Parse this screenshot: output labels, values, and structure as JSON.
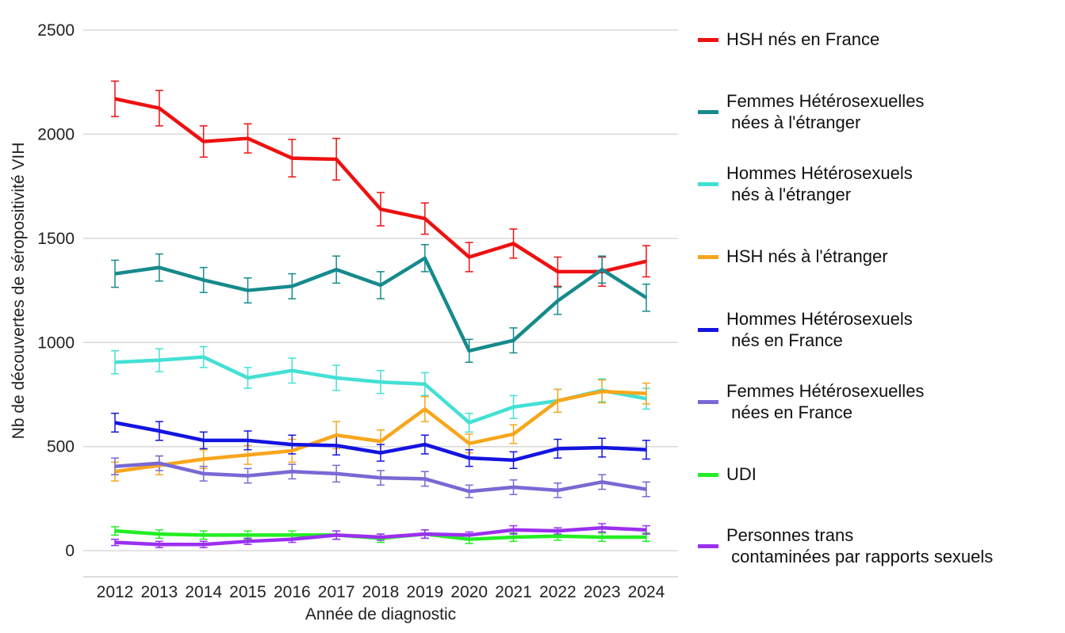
{
  "chart_data": {
    "type": "line",
    "ylabel": "Nb de découvertes de séropositivité VIH",
    "xlabel": "Année de diagnostic",
    "categories": [
      "2012",
      "2013",
      "2014",
      "2015",
      "2016",
      "2017",
      "2018",
      "2019",
      "2020",
      "2021",
      "2022",
      "2023",
      "2024"
    ],
    "ylim": [
      -125,
      2500
    ],
    "yticks": [
      0,
      500,
      1000,
      1500,
      2000,
      2500
    ],
    "grid": true,
    "series": [
      {
        "name": "HSH nés en France",
        "color": "#ee1111",
        "values": [
          2170,
          2125,
          1965,
          1980,
          1885,
          1880,
          1640,
          1595,
          1410,
          1475,
          1340,
          1340,
          1390
        ],
        "errors": [
          85,
          85,
          75,
          70,
          90,
          100,
          80,
          75,
          70,
          70,
          70,
          70,
          75
        ]
      },
      {
        "name": "Femmes Hétérosexuelles\n nées à l'étranger",
        "color": "#168a8c",
        "values": [
          1330,
          1360,
          1300,
          1250,
          1270,
          1350,
          1275,
          1405,
          960,
          1010,
          1200,
          1350,
          1215
        ],
        "errors": [
          65,
          65,
          60,
          60,
          60,
          65,
          65,
          65,
          55,
          60,
          65,
          65,
          65
        ]
      },
      {
        "name": "Hommes Hétérosexuels\n nés à l'étranger",
        "color": "#44e0d4",
        "values": [
          905,
          915,
          930,
          830,
          865,
          830,
          810,
          800,
          615,
          690,
          720,
          770,
          730
        ],
        "errors": [
          55,
          55,
          50,
          50,
          60,
          60,
          55,
          55,
          45,
          55,
          55,
          55,
          50
        ]
      },
      {
        "name": "HSH nés à l'étranger",
        "color": "#f7a61c",
        "values": [
          380,
          410,
          440,
          460,
          480,
          555,
          525,
          680,
          515,
          560,
          720,
          765,
          755
        ],
        "errors": [
          45,
          45,
          45,
          45,
          55,
          65,
          55,
          60,
          45,
          45,
          55,
          55,
          50
        ]
      },
      {
        "name": "Hommes Hétérosexuels\n nés en France",
        "color": "#1414e0",
        "values": [
          615,
          575,
          530,
          530,
          510,
          505,
          470,
          510,
          445,
          435,
          490,
          495,
          485
        ],
        "errors": [
          45,
          45,
          40,
          45,
          45,
          45,
          40,
          45,
          40,
          40,
          45,
          45,
          45
        ]
      },
      {
        "name": "Femmes Hétérosexuelles\n nées en France",
        "color": "#7a68d4",
        "values": [
          405,
          420,
          370,
          360,
          380,
          370,
          350,
          345,
          285,
          305,
          290,
          330,
          295
        ],
        "errors": [
          40,
          35,
          35,
          35,
          35,
          40,
          35,
          35,
          30,
          35,
          35,
          35,
          35
        ]
      },
      {
        "name": "UDI",
        "color": "#22ee22",
        "values": [
          95,
          80,
          75,
          75,
          75,
          75,
          60,
          80,
          55,
          65,
          70,
          65,
          65
        ],
        "errors": [
          20,
          20,
          20,
          20,
          20,
          20,
          20,
          20,
          20,
          20,
          20,
          20,
          20
        ]
      },
      {
        "name": "Personnes trans\n contaminées par rapports sexuels",
        "color": "#9b30f0",
        "values": [
          40,
          30,
          30,
          45,
          55,
          75,
          65,
          80,
          75,
          100,
          95,
          110,
          100
        ],
        "errors": [
          15,
          15,
          15,
          15,
          15,
          20,
          15,
          20,
          15,
          20,
          15,
          20,
          20
        ]
      }
    ]
  }
}
